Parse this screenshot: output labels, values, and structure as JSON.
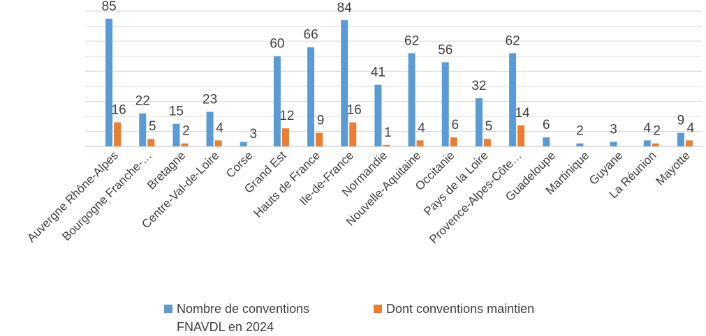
{
  "chart_data": {
    "type": "bar",
    "categories": [
      "Auvergne Rhône-Alpes",
      "Bourgogne Franche-…",
      "Bretagne",
      "Centre-Val-de-Loire",
      "Corse",
      "Grand Est",
      "Hauts de France",
      "Ile-de-France",
      "Normandie",
      "Nouvelle-Aquitaine",
      "Occitanie",
      "Pays de la Loire",
      "Provence-Alpes-Côte…",
      "Guadeloupe",
      "Martinique",
      "Guyane",
      "La Réunion",
      "Mayotte"
    ],
    "series": [
      {
        "name": "Nombre de conventions FNAVDL en 2024",
        "color": "#5B9BD5",
        "values": [
          85,
          22,
          15,
          23,
          3,
          60,
          66,
          84,
          41,
          62,
          56,
          32,
          62,
          6,
          2,
          3,
          4,
          9
        ]
      },
      {
        "name": "Dont conventions maintien",
        "color": "#ED7D31",
        "values": [
          16,
          5,
          2,
          4,
          null,
          12,
          9,
          16,
          1,
          4,
          6,
          5,
          14,
          null,
          null,
          null,
          2,
          4
        ]
      }
    ],
    "series1_labels": [
      "85",
      "22",
      "15",
      "23",
      "",
      "60",
      "66",
      "84",
      "41",
      "62",
      "56",
      "32",
      "62",
      "6",
      "2",
      "3",
      "4",
      "9"
    ],
    "series2_labels": [
      "16",
      "5",
      "2",
      "4",
      "3",
      "12",
      "9",
      "16",
      "1",
      "4",
      "6",
      "5",
      "14",
      "",
      "",
      "",
      "2",
      "4"
    ],
    "ylim": [
      0,
      90
    ],
    "grid": true,
    "legend_position": "bottom"
  },
  "legend": {
    "series1_line1": "Nombre de conventions",
    "series1_line2": "FNAVDL en 2024",
    "series2": "Dont conventions maintien"
  }
}
